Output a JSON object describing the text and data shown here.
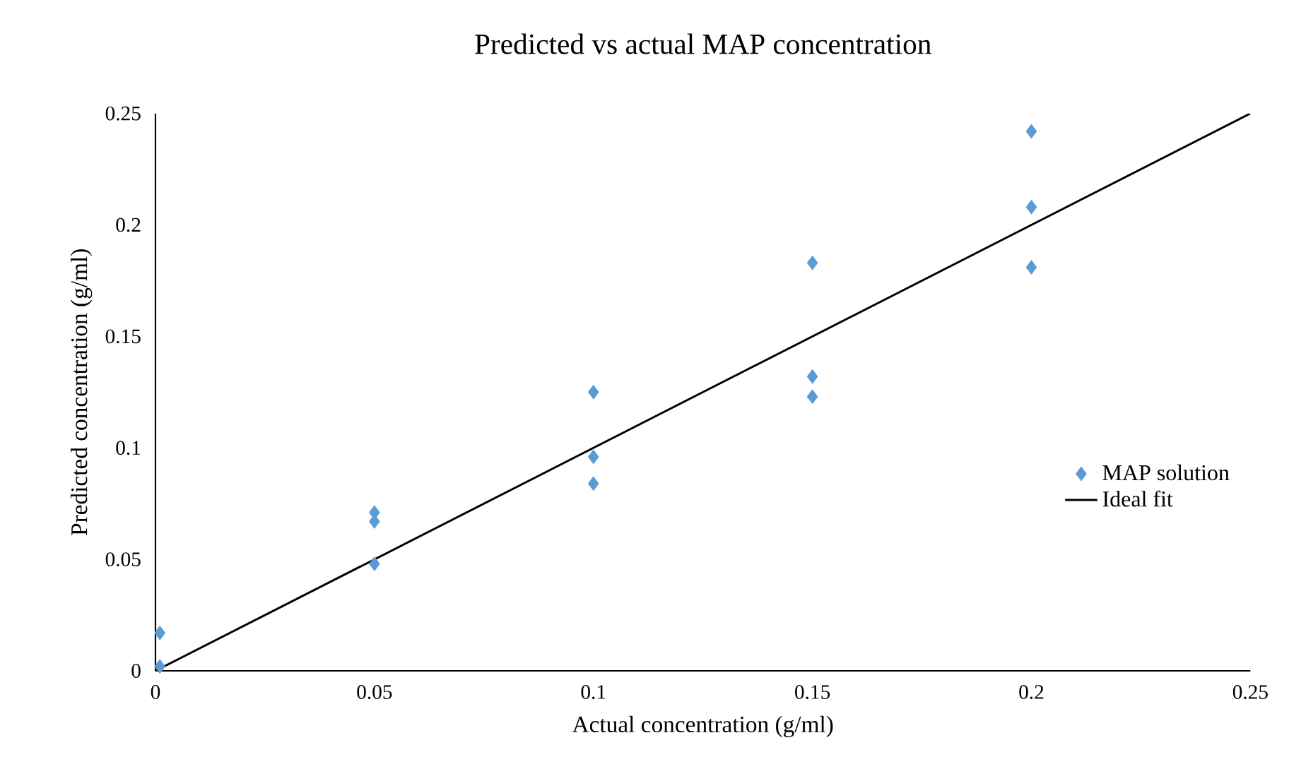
{
  "chart_data": {
    "type": "scatter",
    "title": "Predicted vs actual MAP concentration",
    "xlabel": "Actual concentration (g/ml)",
    "ylabel": "Predicted concentration (g/ml)",
    "series": [
      {
        "name": "MAP solution",
        "color": "#5b9bd5",
        "marker": "diamond",
        "x": [
          0.001,
          0.001,
          0.05,
          0.05,
          0.05,
          0.1,
          0.1,
          0.1,
          0.15,
          0.15,
          0.15,
          0.2,
          0.2,
          0.2
        ],
        "values": [
          0.017,
          0.002,
          0.071,
          0.067,
          0.048,
          0.125,
          0.096,
          0.084,
          0.183,
          0.132,
          0.123,
          0.242,
          0.208,
          0.181
        ]
      },
      {
        "name": "Ideal fit",
        "type": "line",
        "color": "#000000",
        "marker": "none",
        "line_style": "solid",
        "x": [
          0,
          0.25
        ],
        "values": [
          0,
          0.25
        ]
      }
    ],
    "xlim": [
      0,
      0.25
    ],
    "ylim": [
      0,
      0.25
    ],
    "xticks": [
      0,
      0.05,
      0.1,
      0.15,
      0.2,
      0.25
    ],
    "yticks": [
      0,
      0.05,
      0.1,
      0.15,
      0.2,
      0.25
    ],
    "grid": false,
    "legend": "right"
  }
}
